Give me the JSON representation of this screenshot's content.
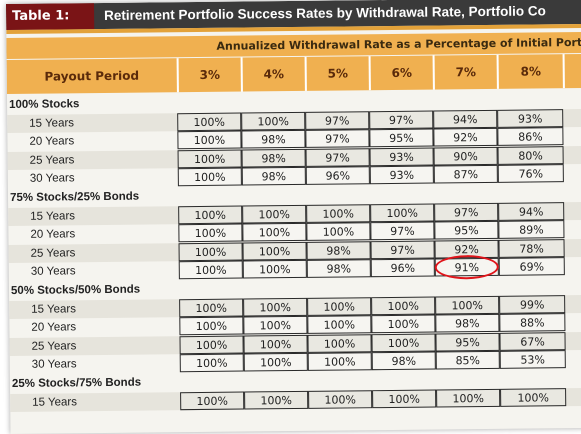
{
  "title": {
    "tag": "Table 1:",
    "text": "Retirement Portfolio Success Rates by Withdrawal Rate, Portfolio Co"
  },
  "annualized_header": "Annualized Withdrawal Rate as a Percentage of Initial Portfoli",
  "columns": {
    "payout": "Payout Period",
    "rates": [
      "3%",
      "4%",
      "5%",
      "6%",
      "7%",
      "8%"
    ]
  },
  "colors": {
    "title_bg": "#3a3a3a",
    "title_tag_bg": "#7a1416",
    "header_orange": "#f0b050",
    "highlight": "#e0141a"
  },
  "groups": [
    {
      "label": "100% Stocks",
      "rows": [
        {
          "period": "15 Years",
          "values": [
            "100%",
            "100%",
            "97%",
            "97%",
            "94%",
            "93%"
          ]
        },
        {
          "period": "20 Years",
          "values": [
            "100%",
            "98%",
            "97%",
            "95%",
            "92%",
            "86%"
          ]
        },
        {
          "period": "25 Years",
          "values": [
            "100%",
            "98%",
            "97%",
            "93%",
            "90%",
            "80%"
          ]
        },
        {
          "period": "30 Years",
          "values": [
            "100%",
            "98%",
            "96%",
            "93%",
            "87%",
            "76%"
          ]
        }
      ]
    },
    {
      "label": "75% Stocks/25% Bonds",
      "rows": [
        {
          "period": "15 Years",
          "values": [
            "100%",
            "100%",
            "100%",
            "100%",
            "97%",
            "94%"
          ]
        },
        {
          "period": "20 Years",
          "values": [
            "100%",
            "100%",
            "100%",
            "97%",
            "95%",
            "89%"
          ]
        },
        {
          "period": "25 Years",
          "values": [
            "100%",
            "100%",
            "98%",
            "97%",
            "92%",
            "78%"
          ]
        },
        {
          "period": "30 Years",
          "values": [
            "100%",
            "100%",
            "98%",
            "96%",
            "91%",
            "69%"
          ]
        }
      ]
    },
    {
      "label": "50% Stocks/50% Bonds",
      "rows": [
        {
          "period": "15 Years",
          "values": [
            "100%",
            "100%",
            "100%",
            "100%",
            "100%",
            "99%"
          ]
        },
        {
          "period": "20 Years",
          "values": [
            "100%",
            "100%",
            "100%",
            "100%",
            "98%",
            "88%"
          ]
        },
        {
          "period": "25 Years",
          "values": [
            "100%",
            "100%",
            "100%",
            "100%",
            "95%",
            "67%"
          ]
        },
        {
          "period": "30 Years",
          "values": [
            "100%",
            "100%",
            "100%",
            "98%",
            "85%",
            "53%"
          ]
        }
      ]
    },
    {
      "label": "25% Stocks/75% Bonds",
      "rows": [
        {
          "period": "15 Years",
          "values": [
            "100%",
            "100%",
            "100%",
            "100%",
            "100%",
            "100%"
          ]
        }
      ]
    }
  ],
  "highlighted_cell": {
    "group": 1,
    "row": 3,
    "column": 4
  }
}
